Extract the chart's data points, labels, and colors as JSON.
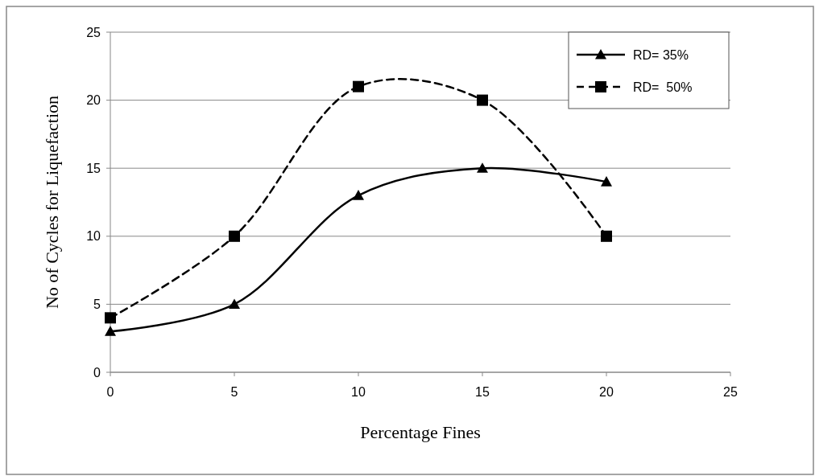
{
  "chart_data": {
    "type": "line",
    "xlabel": "Percentage Fines",
    "ylabel": "No of Cycles for Liquefaction",
    "x": [
      0,
      5,
      10,
      15,
      20
    ],
    "series": [
      {
        "name": "RD= 35%",
        "color": "#000000",
        "values": [
          3,
          5,
          13,
          15,
          14
        ],
        "marker": "triangle",
        "line_style": "solid"
      },
      {
        "name": "RD=  50%",
        "color": "#000000",
        "values": [
          4,
          10,
          21,
          20,
          10
        ],
        "marker": "square",
        "line_style": "dashed"
      }
    ],
    "xlim": [
      0,
      25
    ],
    "xticks": [
      0,
      5,
      10,
      15,
      20,
      25
    ],
    "ylim": [
      0,
      25
    ],
    "yticks": [
      0,
      5,
      10,
      15,
      20,
      25
    ],
    "grid": "y",
    "legend": "top right"
  }
}
